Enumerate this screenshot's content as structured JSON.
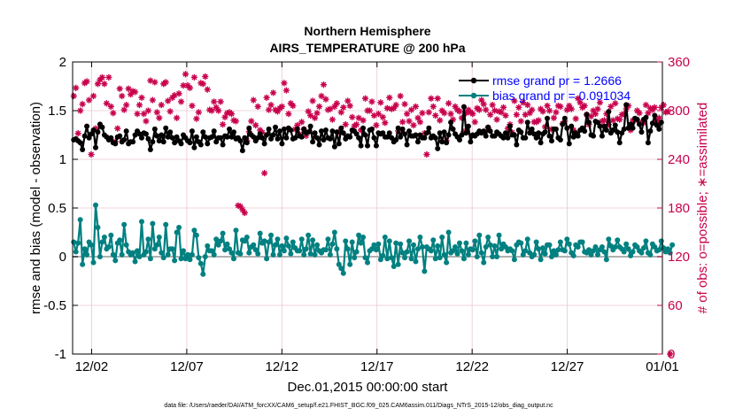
{
  "chart_data": {
    "type": "line",
    "title": "Northern Hemisphere",
    "subtitle": "AIRS_TEMPERATURE @ 200 hPa",
    "xlabel": "Dec.01,2015 00:00:00 start",
    "ylabel": "rmse and bias (model - observation)",
    "ylabel_right": "# of obs: o=possible; ∗=assimilated",
    "footnote": "data file: /Users/raeder/DAI/ATM_forcXX/CAM6_setup/f.e21.FHIST_BGC.f09_025.CAM6assim.011/Diags_NTrS_2015-12/obs_diag_output.nc",
    "x_tick_labels": [
      "12/02",
      "12/07",
      "12/12",
      "12/17",
      "12/22",
      "12/27",
      "01/01"
    ],
    "x_tick_days": [
      2,
      7,
      12,
      17,
      22,
      27,
      32
    ],
    "xlim_days": [
      1.0,
      32.0
    ],
    "y_ticks": [
      "-1",
      "-0.5",
      "0",
      "0.5",
      "1",
      "1.5",
      "2"
    ],
    "ylim": [
      -1,
      2
    ],
    "y_right_ticks": [
      "0",
      "60",
      "120",
      "180",
      "240",
      "300",
      "360"
    ],
    "ylim_right": [
      0,
      360
    ],
    "legend_position": "top-right",
    "grid": true,
    "series": [
      {
        "name": "rmse grand pr = 1.2666",
        "axis": "left",
        "color": "#000000",
        "marker": "dot",
        "values": [
          1.2,
          1.21,
          1.19,
          1.17,
          1.1,
          1.24,
          1.34,
          1.22,
          1.26,
          1.3,
          1.12,
          1.28,
          1.36,
          1.33,
          1.25,
          1.23,
          1.2,
          1.22,
          1.17,
          1.16,
          1.23,
          1.24,
          1.18,
          1.2,
          1.29,
          1.16,
          1.18,
          1.18,
          1.25,
          1.29,
          1.26,
          1.22,
          1.27,
          1.26,
          1.21,
          1.1,
          1.18,
          1.31,
          1.24,
          1.19,
          1.25,
          1.18,
          1.32,
          1.23,
          1.28,
          1.22,
          1.17,
          1.23,
          1.19,
          1.16,
          1.25,
          1.22,
          1.19,
          1.17,
          1.29,
          1.12,
          1.23,
          1.18,
          1.15,
          1.28,
          1.23,
          1.16,
          1.22,
          1.23,
          1.29,
          1.18,
          1.22,
          1.22,
          1.15,
          1.24,
          1.23,
          1.31,
          1.23,
          1.28,
          1.21,
          1.22,
          1.19,
          1.09,
          1.22,
          1.17,
          1.32,
          1.25,
          1.23,
          1.19,
          1.22,
          1.26,
          1.22,
          1.16,
          1.25,
          1.31,
          1.21,
          1.25,
          1.33,
          1.21,
          1.29,
          1.16,
          1.31,
          1.22,
          1.32,
          1.3,
          1.21,
          1.22,
          1.31,
          1.24,
          1.23,
          1.31,
          1.27,
          1.28,
          1.34,
          1.18,
          1.27,
          1.22,
          1.15,
          1.29,
          1.2,
          1.3,
          1.22,
          1.21,
          1.29,
          1.13,
          1.28,
          1.16,
          1.32,
          1.27,
          1.21,
          1.24,
          1.23,
          1.3,
          1.29,
          1.26,
          1.22,
          1.14,
          1.32,
          1.25,
          1.14,
          1.3,
          1.31,
          1.22,
          1.14,
          1.27,
          1.26,
          1.27,
          1.23,
          1.23,
          1.27,
          1.22,
          1.18,
          1.2,
          1.32,
          1.23,
          1.31,
          1.26,
          1.15,
          1.29,
          1.24,
          1.24,
          1.25,
          1.18,
          1.25,
          1.22,
          1.22,
          1.27,
          1.32,
          1.22,
          1.24,
          1.22,
          1.11,
          1.27,
          1.18,
          1.28,
          1.17,
          1.25,
          1.38,
          1.31,
          1.26,
          1.23,
          1.2,
          1.25,
          1.54,
          1.27,
          1.34,
          1.18,
          1.25,
          1.24,
          1.26,
          1.29,
          1.27,
          1.29,
          1.24,
          1.33,
          1.29,
          1.24,
          1.24,
          1.28,
          1.26,
          1.24,
          1.22,
          1.27,
          1.22,
          1.34,
          1.25,
          1.25,
          1.15,
          1.3,
          1.28,
          1.22,
          1.22,
          1.38,
          1.27,
          1.31,
          1.26,
          1.22,
          1.27,
          1.17,
          1.26,
          1.28,
          1.42,
          1.24,
          1.19,
          1.31,
          1.31,
          1.22,
          1.2,
          1.36,
          1.42,
          1.32,
          1.16,
          1.34,
          1.23,
          1.27,
          1.24,
          1.3,
          1.32,
          1.29,
          1.46,
          1.38,
          1.25,
          1.24,
          1.39,
          1.38,
          1.34,
          1.24,
          1.34,
          1.3,
          1.49,
          1.27,
          1.3,
          1.35,
          1.28,
          1.17,
          1.27,
          1.31,
          1.56,
          1.32,
          1.36,
          1.32,
          1.42,
          1.41,
          1.36,
          1.28,
          1.41,
          1.43,
          1.17,
          1.29,
          1.37,
          1.45,
          1.35,
          1.31,
          1.38
        ]
      },
      {
        "name": "bias grand pr = 0.091034",
        "axis": "left",
        "color": "#008080",
        "marker": "dot",
        "values": [
          0.15,
          0.05,
          0.14,
          0.38,
          -0.08,
          0.08,
          0.02,
          0.15,
          0.12,
          -0.06,
          0.53,
          0.3,
          0.0,
          0.15,
          0.2,
          0.08,
          0.1,
          0.22,
          0.02,
          -0.04,
          0.14,
          0.17,
          0.02,
          0.33,
          0.12,
          0.05,
          0.02,
          0.04,
          -0.05,
          0.06,
          0.0,
          0.36,
          0.02,
          0.05,
          0.18,
          -0.02,
          0.34,
          0.08,
          0.12,
          0.2,
          0.04,
          -0.01,
          0.33,
          0.02,
          0.08,
          0.08,
          -0.04,
          0.25,
          0.3,
          -0.02,
          0.06,
          -0.02,
          0.02,
          -0.03,
          0.02,
          0.27,
          0.22,
          -0.01,
          -0.07,
          -0.18,
          0.0,
          0.11,
          0.06,
          0.06,
          0.02,
          0.18,
          0.12,
          0.16,
          0.24,
          0.07,
          0.13,
          0.08,
          0.04,
          -0.02,
          0.27,
          0.04,
          0.03,
          0.17,
          0.16,
          0.2,
          0.04,
          0.1,
          0.12,
          0.07,
          0.03,
          0.24,
          0.14,
          0.16,
          -0.02,
          0.15,
          0.22,
          0.02,
          0.12,
          0.18,
          0.02,
          0.11,
          0.06,
          0.19,
          0.11,
          0.03,
          0.15,
          0.09,
          0.06,
          0.06,
          0.18,
          0.02,
          0.08,
          0.22,
          0.03,
          0.17,
          0.02,
          0.12,
          0.06,
          0.04,
          0.07,
          0.07,
          0.18,
          0.02,
          0.13,
          0.25,
          0.08,
          -0.08,
          -0.12,
          -0.17,
          0.16,
          0.08,
          -0.08,
          0.15,
          -0.01,
          0.05,
          0.22,
          0.14,
          0.2,
          -0.01,
          -0.06,
          0.06,
          0.08,
          0.12,
          0.07,
          0.13,
          -0.03,
          0.01,
          0.2,
          -0.02,
          0.16,
          -0.01,
          -0.1,
          0.14,
          -0.08,
          0.13,
          0.04,
          -0.01,
          0.05,
          0.16,
          -0.02,
          0.12,
          -0.05,
          0.08,
          0.2,
          0.1,
          -0.15,
          0.1,
          0.08,
          0.06,
          0.17,
          -0.02,
          0.11,
          -0.01,
          0.2,
          0.02,
          -0.06,
          0.25,
          0.04,
          0.06,
          0.1,
          0.03,
          0.14,
          0.06,
          -0.02,
          0.14,
          0.02,
          0.08,
          0.07,
          0.16,
          0.0,
          0.22,
          0.04,
          -0.06,
          0.1,
          0.2,
          0.12,
          0.0,
          0.11,
          0.0,
          0.22,
          0.08,
          0.13,
          0.1,
          0.06,
          0.08,
          0.06,
          -0.03,
          0.12,
          0.15,
          0.14,
          0.02,
          0.06,
          0.18,
          0.04,
          0.0,
          0.02,
          0.15,
          0.08,
          -0.03,
          0.09,
          0.03,
          0.12,
          0.12,
          0.0,
          0.06,
          0.02,
          0.07,
          0.15,
          0.07,
          0.06,
          0.18,
          0.13,
          0.04,
          0.01,
          0.12,
          0.1,
          0.15,
          0.15,
          0.05,
          0.04,
          0.07,
          0.02,
          0.06,
          0.1,
          0.02,
          0.07,
          0.1,
          0.05,
          -0.03,
          0.18,
          0.11,
          0.07,
          0.1,
          0.17,
          0.1,
          0.08,
          0.05,
          0.13,
          0.08,
          0.01,
          0.05,
          0.12,
          0.1,
          0.06,
          0.04,
          0.09,
          0.16,
          0.04,
          0.02,
          0.13,
          0.1,
          0.06,
          0.07,
          0.16,
          0.09,
          0.05,
          0.08,
          0.04,
          0.12
        ]
      },
      {
        "name": "# of obs possible",
        "axis": "right",
        "color": "#c8004c",
        "marker": "circle",
        "values": []
      },
      {
        "name": "# of obs assimilated",
        "axis": "right",
        "color": "#c8004c",
        "marker": "asterisk",
        "values": [
          318,
          328,
          272,
          300,
          308,
          334,
          336,
          313,
          246,
          318,
          278,
          333,
          338,
          341,
          333,
          309,
          341,
          305,
          297,
          262,
          278,
          327,
          318,
          301,
          307,
          327,
          320,
          324,
          323,
          296,
          307,
          316,
          296,
          287,
          300,
          337,
          313,
          335,
          298,
          291,
          307,
          333,
          335,
          312,
          299,
          316,
          319,
          291,
          321,
          311,
          331,
          345,
          331,
          328,
          306,
          341,
          290,
          298,
          334,
          333,
          342,
          326,
          301,
          300,
          311,
          304,
          300,
          311,
          283,
          292,
          297,
          298,
          296,
          288,
          287,
          183,
          182,
          178,
          174,
          263,
          274,
          287,
          313,
          282,
          305,
          276,
          273,
          223,
          316,
          301,
          307,
          322,
          301,
          299,
          303,
          305,
          334,
          325,
          296,
          309,
          306,
          277,
          282,
          271,
          286,
          277,
          269,
          299,
          294,
          312,
          291,
          297,
          305,
          318,
          332,
          314,
          301,
          302,
          289,
          305,
          309,
          274,
          298,
          304,
          283,
          312,
          306,
          292,
          281,
          283,
          291,
          276,
          288,
          315,
          300,
          300,
          311,
          294,
          282,
          296,
          310,
          292,
          285,
          303,
          316,
          302,
          303,
          307,
          275,
          318,
          286,
          308,
          296,
          287,
          301,
          282,
          305,
          291,
          286,
          297,
          272,
          246,
          298,
          315,
          305,
          294,
          315,
          288,
          300,
          297,
          263,
          309,
          296,
          289,
          305,
          301,
          299,
          291,
          274,
          297,
          301,
          298,
          296,
          286,
          303,
          301,
          313,
          308,
          301,
          279,
          295,
          307,
          300,
          289,
          299,
          298,
          304,
          294,
          278,
          283,
          273,
          312,
          295,
          304,
          287,
          310,
          295,
          307,
          297,
          301,
          286,
          286,
          288,
          302,
          299,
          280,
          306,
          300,
          277,
          291,
          298,
          306,
          305,
          284,
          287,
          301,
          306,
          302,
          276,
          290,
          315,
          310,
          304,
          306,
          295,
          283,
          293,
          300,
          296,
          302,
          310,
          287,
          288,
          296,
          283,
          305,
          288,
          309,
          290,
          289,
          295,
          296,
          302,
          306,
          276,
          288,
          288,
          300,
          297,
          286,
          285,
          307,
          297,
          303,
          301,
          304,
          287,
          291,
          304,
          307,
          298,
          299,
          0
        ]
      }
    ]
  }
}
